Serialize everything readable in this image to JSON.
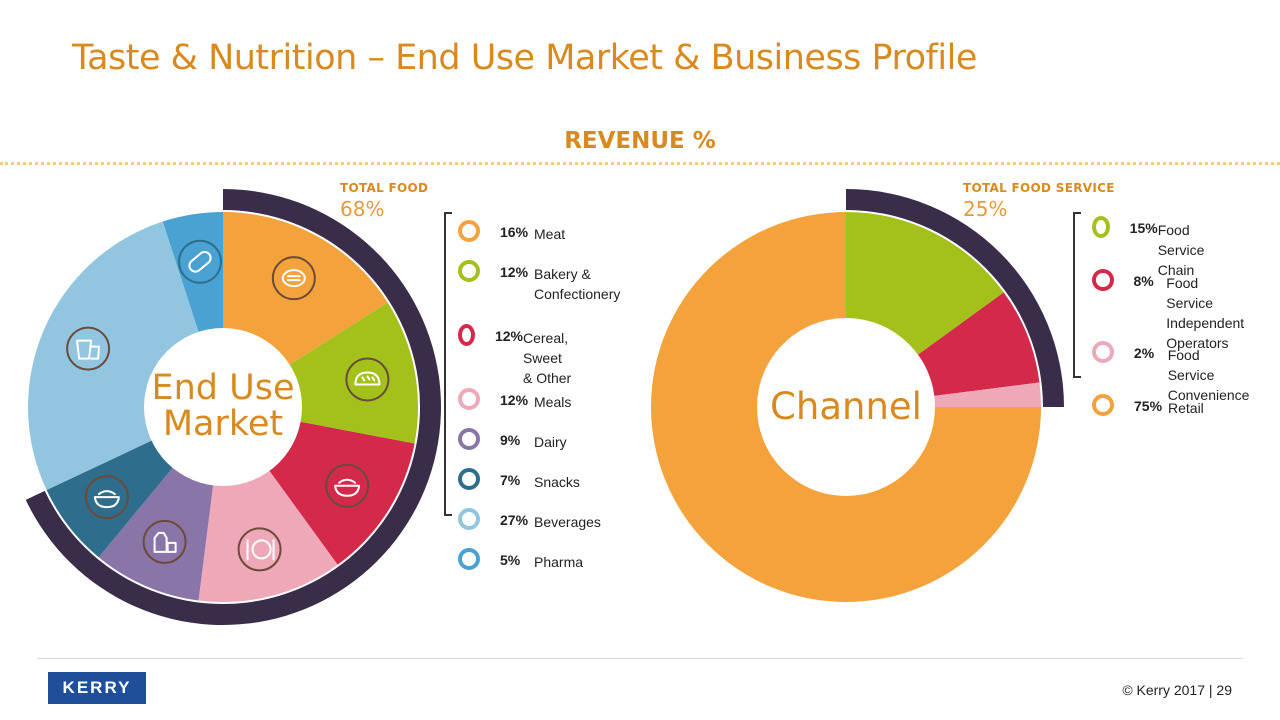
{
  "title": "Taste & Nutrition – End Use Market & Business Profile",
  "subtitle": "REVENUE %",
  "footer": {
    "logo": "KERRY",
    "copyright": "© Kerry 2017 | 29"
  },
  "chart_data": [
    {
      "type": "pie",
      "center_label_line1": "End Use",
      "center_label_line2": "Market",
      "total_label": "TOTAL FOOD",
      "total_value": "68%",
      "total_value_num": 68,
      "categories": [
        "Meat",
        "Bakery & Confectionery",
        "Cereal, Sweet & Other",
        "Meals",
        "Dairy",
        "Snacks",
        "Beverages",
        "Pharma"
      ],
      "values": [
        16,
        12,
        12,
        12,
        9,
        7,
        27,
        5
      ],
      "labels": [
        "16%",
        "12%",
        "12%",
        "12%",
        "9%",
        "7%",
        "27%",
        "5%"
      ],
      "legend_text": [
        "Meat",
        "Bakery &\nConfectionery",
        "Cereal, Sweet\n& Other",
        "Meals",
        "Dairy",
        "Snacks",
        "Beverages",
        "Pharma"
      ],
      "colors": [
        "#f4a23c",
        "#a4c11b",
        "#d42a4a",
        "#efa8b8",
        "#8a75a8",
        "#2e6e8c",
        "#92c5e0",
        "#4aa2d2"
      ],
      "icons": [
        "steak-icon",
        "bread-icon",
        "cereal-bowl-icon",
        "meal-plate-icon",
        "dairy-icon",
        "snack-bowl-icon",
        "beverage-icon",
        "pill-icon"
      ]
    },
    {
      "type": "pie",
      "center_label_line1": "Channel",
      "total_label": "TOTAL FOOD SERVICE",
      "total_value": "25%",
      "total_value_num": 25,
      "categories": [
        "Food Service Chain",
        "Food Service Independent Operators",
        "Food Service Convenience",
        "Retail"
      ],
      "values": [
        15,
        8,
        2,
        75
      ],
      "labels": [
        "15%",
        "8%",
        "2%",
        "75%"
      ],
      "legend_text": [
        "Food Service\nChain",
        "Food Service\nIndependent\nOperators",
        "Food Service\nConvenience",
        "Retail"
      ],
      "colors": [
        "#a4c11b",
        "#d42a4a",
        "#efa8b8",
        "#f4a23c"
      ]
    }
  ],
  "colors": {
    "accent": "#d98a1f",
    "arc": "#3a2d4a"
  }
}
